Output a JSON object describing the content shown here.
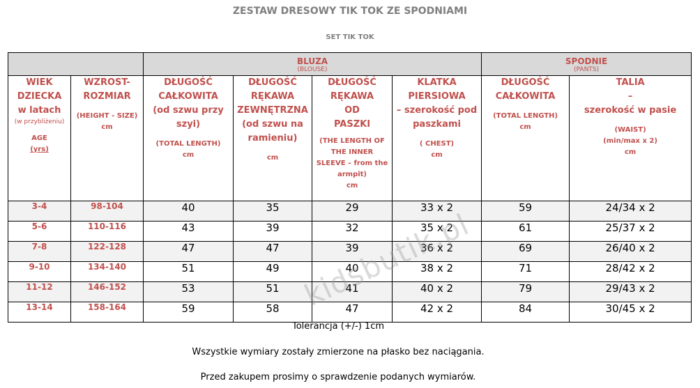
{
  "title": "ZESTAW DRESOWY TIK TOK ZE SPODNIAMI",
  "subtitle": "SET TIK TOK",
  "groups": {
    "bluza": {
      "name": "BLUZA",
      "sub": "(BLOUSE)"
    },
    "spodnie": {
      "name": "SPODNIE",
      "sub": "(PANTS)"
    }
  },
  "headers": {
    "age": {
      "l1": "WIEK",
      "l2": "DZIECKA",
      "l3": "w latach",
      "l4": "(w przybliżeniu)",
      "l5": "AGE",
      "l6": "(yrs)"
    },
    "height": {
      "l1": "WZROST-",
      "l2": "ROZMIAR",
      "l3": "(HEIGHT - SIZE)",
      "l4": "cm"
    },
    "blouse_length": {
      "l1": "DŁUGOŚĆ",
      "l2": "CAŁKOWITA",
      "l3": "(od szwu przy",
      "l4": "szyi)",
      "l5": "(TOTAL LENGTH)",
      "l6": "cm"
    },
    "outer_sleeve": {
      "l1": "DŁUGOŚĆ",
      "l2": "RĘKAWA",
      "l3": "ZEWNĘTRZNA",
      "l4": "(od szwu na",
      "l5": "ramieniu)",
      "l6": "cm"
    },
    "inner_sleeve": {
      "l1": "DŁUGOŚĆ",
      "l2": "RĘKAWA",
      "l3": "OD",
      "l4": "PASZKI",
      "l5": "(THE LENGTH OF",
      "l6": "THE INNER",
      "l7": "SLEEVE – from the",
      "l8": "armpit)",
      "l9": "cm"
    },
    "chest": {
      "l1": "KLATKA",
      "l2": "PIERSIOWA",
      "l3": "– szerokość pod",
      "l4": "paszkami",
      "l5": "( CHEST)",
      "l6": "cm"
    },
    "pants_length": {
      "l1": "DŁUGOŚĆ",
      "l2": "CAŁKOWITA",
      "l3": "(TOTAL LENGTH)",
      "l4": "cm"
    },
    "waist": {
      "l1": "TALIA",
      "l2": "–",
      "l3": "szerokość w pasie",
      "l4": "(WAIST)",
      "l5": "(min/max x 2)",
      "l6": "cm"
    }
  },
  "rows": [
    {
      "age": "3-4",
      "height": "98-104",
      "blouse_length": "40",
      "outer_sleeve": "35",
      "inner_sleeve": "29",
      "chest": "33 x 2",
      "pants_length": "59",
      "waist": "24/34 x 2"
    },
    {
      "age": "5-6",
      "height": "110-116",
      "blouse_length": "43",
      "outer_sleeve": "39",
      "inner_sleeve": "32",
      "chest": "35 x 2",
      "pants_length": "61",
      "waist": "25/37 x 2"
    },
    {
      "age": "7-8",
      "height": "122-128",
      "blouse_length": "47",
      "outer_sleeve": "47",
      "inner_sleeve": "39",
      "chest": "36 x 2",
      "pants_length": "69",
      "waist": "26/40 x 2"
    },
    {
      "age": "9-10",
      "height": "134-140",
      "blouse_length": "51",
      "outer_sleeve": "49",
      "inner_sleeve": "40",
      "chest": "38 x 2",
      "pants_length": "71",
      "waist": "28/42 x 2"
    },
    {
      "age": "11-12",
      "height": "146-152",
      "blouse_length": "53",
      "outer_sleeve": "51",
      "inner_sleeve": "41",
      "chest": "40 x 2",
      "pants_length": "79",
      "waist": "29/43 x 2"
    },
    {
      "age": "13-14",
      "height": "158-164",
      "blouse_length": "59",
      "outer_sleeve": "58",
      "inner_sleeve": "47",
      "chest": "42 x 2",
      "pants_length": "84",
      "waist": "30/45 x 2"
    }
  ],
  "notes": {
    "tolerance": "Tolerancja (+/-) 1cm",
    "flat": "Wszystkie wymiary zostały zmierzone na płasko bez naciągania.",
    "check": "Przed zakupem prosimy o sprawdzenie podanych wymiarów."
  },
  "watermark": "kidsbutik.pl",
  "colors": {
    "header_text": "#c0504d",
    "group_bg": "#d9d9d9",
    "title_text": "#7f7f7f"
  }
}
